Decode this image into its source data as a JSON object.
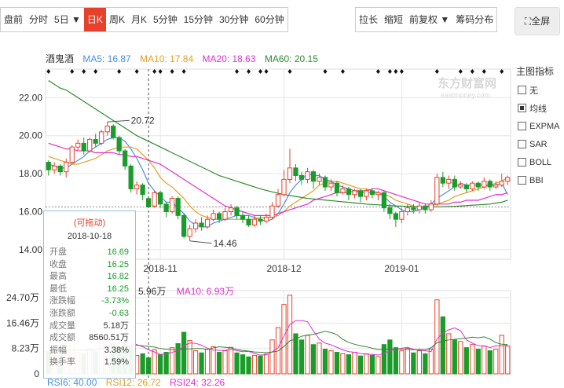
{
  "toolbar": {
    "left": [
      {
        "label": "盘前",
        "active": false
      },
      {
        "label": "分时",
        "active": false
      },
      {
        "label": "5日 ▼",
        "active": false
      },
      {
        "label": "日K",
        "active": true
      },
      {
        "label": "周K",
        "active": false
      },
      {
        "label": "月K",
        "active": false
      },
      {
        "label": "5分钟",
        "active": false
      },
      {
        "label": "15分钟",
        "active": false
      },
      {
        "label": "30分钟",
        "active": false
      },
      {
        "label": "60分钟",
        "active": false
      }
    ],
    "right": [
      {
        "label": "拉长"
      },
      {
        "label": "缩短"
      },
      {
        "label": "前复权 ▼"
      },
      {
        "label": "筹码分布"
      }
    ],
    "fullscreen": "全屏"
  },
  "legend": {
    "name": "酒鬼酒",
    "ma5": "MA5: 16.87",
    "ma10": "MA10: 17.84",
    "ma20": "MA20: 18.63",
    "ma60": "MA60: 20.15"
  },
  "colors": {
    "up": "#e8412b",
    "down": "#1a9c2a",
    "ma5": "#4a90e2",
    "ma10": "#e0a020",
    "ma20": "#e030d0",
    "ma60": "#2e8b2e",
    "grid": "#e6e6e6"
  },
  "side": {
    "title": "主图指标",
    "options": [
      {
        "label": "无",
        "checked": false
      },
      {
        "label": "均线",
        "checked": true
      },
      {
        "label": "EXPMA",
        "checked": false
      },
      {
        "label": "SAR",
        "checked": false
      },
      {
        "label": "BOLL",
        "checked": false
      },
      {
        "label": "BBI",
        "checked": false
      }
    ]
  },
  "watermark": {
    "main": "东方财富网",
    "sub": "eastmoney.com"
  },
  "tooltip": {
    "hint": "(可拖动)",
    "date": "2018-10-18",
    "rows": [
      {
        "k": "开盘",
        "v": "16.69",
        "c": "green"
      },
      {
        "k": "收盘",
        "v": "16.25",
        "c": "green"
      },
      {
        "k": "最高",
        "v": "16.82",
        "c": "green"
      },
      {
        "k": "最低",
        "v": "16.25",
        "c": "green"
      },
      {
        "k": "涨跌幅",
        "v": "-3.73%",
        "c": "green"
      },
      {
        "k": "涨跌额",
        "v": "-0.63",
        "c": "green"
      },
      {
        "k": "成交量",
        "v": "5.18万",
        "c": ""
      },
      {
        "k": "成交额",
        "v": "8560.51万",
        "c": ""
      },
      {
        "k": "振幅",
        "v": "3.38%",
        "c": ""
      },
      {
        "k": "换手率",
        "v": "1.59%",
        "c": ""
      }
    ]
  },
  "volume_legend": {
    "ma5": "5.96万",
    "ma10": "MA10: 6.93万"
  },
  "bottom_legend": {
    "rsi6": "RSI6: 40.00",
    "rsi12": "RSI12: 26.72",
    "rsi24": "RSI24: 32.26"
  },
  "chart_data": {
    "type": "candlestick",
    "price_axis": {
      "ticks": [
        "22.00",
        "20.00",
        "18.00",
        "16.00",
        "14.00"
      ],
      "values": [
        22,
        20,
        18,
        16,
        14
      ],
      "range": [
        13.5,
        23.5
      ]
    },
    "volume_axis": {
      "ticks": [
        "24.70万",
        "16.46万",
        "8.23万",
        "0"
      ],
      "values": [
        24.7,
        16.46,
        8.23,
        0
      ],
      "unit": "万",
      "range": [
        0,
        27
      ]
    },
    "x_ticks": [
      {
        "label": "2018-11",
        "index": 19
      },
      {
        "label": "2018-12",
        "index": 40
      },
      {
        "label": "2019-01",
        "index": 60
      }
    ],
    "annotations": [
      {
        "text": "20.72",
        "index": 10,
        "value": 20.72
      },
      {
        "text": "14.46",
        "index": 24,
        "value": 14.46
      }
    ],
    "reference_price": 16.25,
    "crosshair_index": 17,
    "candles": [
      [
        18.6,
        18.2,
        18.7,
        17.9
      ],
      [
        18.2,
        18.4,
        18.6,
        18.0
      ],
      [
        18.4,
        18.1,
        18.5,
        17.9
      ],
      [
        18.1,
        18.6,
        18.8,
        17.8
      ],
      [
        18.6,
        19.4,
        19.5,
        18.5
      ],
      [
        19.4,
        19.6,
        19.8,
        19.2
      ],
      [
        19.6,
        19.2,
        19.9,
        19.0
      ],
      [
        19.2,
        19.8,
        19.9,
        19.1
      ],
      [
        19.8,
        19.6,
        20.1,
        19.4
      ],
      [
        19.6,
        20.2,
        20.3,
        19.5
      ],
      [
        20.2,
        20.5,
        20.72,
        20.0
      ],
      [
        20.5,
        19.9,
        20.6,
        19.8
      ],
      [
        19.9,
        19.2,
        20.0,
        19.0
      ],
      [
        19.2,
        18.4,
        19.3,
        18.2
      ],
      [
        18.4,
        17.2,
        18.5,
        17.0
      ],
      [
        17.2,
        17.4,
        17.6,
        16.9
      ],
      [
        17.4,
        16.9,
        17.5,
        16.6
      ],
      [
        16.69,
        16.25,
        16.82,
        16.25
      ],
      [
        16.3,
        17.0,
        17.1,
        16.2
      ],
      [
        17.0,
        16.4,
        17.1,
        16.2
      ],
      [
        16.4,
        16.0,
        16.5,
        15.7
      ],
      [
        16.0,
        16.7,
        16.8,
        15.9
      ],
      [
        16.7,
        15.8,
        16.8,
        15.6
      ],
      [
        15.8,
        14.7,
        15.9,
        14.6
      ],
      [
        14.7,
        15.1,
        15.3,
        14.46
      ],
      [
        15.1,
        15.4,
        15.6,
        14.9
      ],
      [
        15.4,
        15.2,
        15.7,
        15.0
      ],
      [
        15.2,
        15.6,
        15.8,
        15.1
      ],
      [
        15.6,
        15.9,
        16.1,
        15.5
      ],
      [
        15.9,
        15.6,
        16.0,
        15.4
      ],
      [
        15.6,
        16.0,
        16.2,
        15.5
      ],
      [
        16.0,
        16.2,
        16.4,
        15.8
      ],
      [
        16.2,
        15.8,
        16.3,
        15.6
      ],
      [
        15.8,
        15.6,
        16.0,
        15.4
      ],
      [
        15.6,
        15.3,
        15.8,
        15.2
      ],
      [
        15.3,
        15.6,
        15.8,
        15.2
      ],
      [
        15.6,
        15.5,
        15.8,
        15.3
      ],
      [
        15.5,
        15.7,
        15.9,
        15.4
      ],
      [
        15.7,
        16.3,
        16.5,
        15.6
      ],
      [
        16.3,
        16.9,
        17.2,
        16.2
      ],
      [
        16.9,
        17.7,
        18.2,
        16.8
      ],
      [
        17.7,
        18.3,
        19.3,
        17.5
      ],
      [
        18.3,
        17.9,
        18.5,
        17.6
      ],
      [
        17.9,
        17.7,
        18.1,
        17.4
      ],
      [
        17.7,
        18.1,
        18.3,
        17.5
      ],
      [
        18.1,
        17.6,
        18.2,
        17.2
      ],
      [
        17.6,
        17.8,
        18.0,
        17.4
      ],
      [
        17.8,
        17.3,
        17.9,
        17.1
      ],
      [
        17.3,
        17.5,
        17.7,
        17.1
      ],
      [
        17.5,
        17.0,
        17.6,
        16.8
      ],
      [
        17.0,
        17.2,
        17.4,
        16.9
      ],
      [
        17.2,
        16.9,
        17.3,
        16.6
      ],
      [
        16.9,
        17.1,
        17.2,
        16.7
      ],
      [
        17.1,
        16.8,
        17.2,
        16.5
      ],
      [
        16.8,
        17.1,
        17.2,
        16.6
      ],
      [
        17.1,
        16.9,
        17.2,
        16.7
      ],
      [
        16.9,
        17.0,
        17.1,
        16.6
      ],
      [
        17.0,
        16.2,
        17.1,
        16.0
      ],
      [
        16.2,
        15.9,
        16.4,
        15.6
      ],
      [
        15.9,
        15.6,
        16.0,
        15.2
      ],
      [
        15.6,
        16.0,
        16.2,
        15.4
      ],
      [
        16.0,
        16.2,
        16.4,
        15.8
      ],
      [
        16.2,
        16.1,
        16.4,
        15.9
      ],
      [
        16.1,
        16.3,
        16.5,
        15.9
      ],
      [
        16.3,
        16.1,
        16.4,
        15.9
      ],
      [
        16.1,
        16.4,
        16.6,
        16.0
      ],
      [
        16.4,
        17.8,
        18.0,
        16.3
      ],
      [
        17.8,
        17.5,
        18.1,
        17.3
      ],
      [
        17.5,
        17.7,
        17.9,
        17.2
      ],
      [
        17.7,
        17.3,
        17.9,
        17.1
      ],
      [
        17.3,
        17.4,
        17.6,
        17.2
      ],
      [
        17.4,
        17.2,
        17.5,
        17.0
      ],
      [
        17.2,
        17.5,
        17.6,
        17.1
      ],
      [
        17.5,
        17.3,
        17.6,
        17.1
      ],
      [
        17.3,
        17.6,
        17.8,
        17.2
      ],
      [
        17.6,
        17.3,
        17.7,
        17.1
      ],
      [
        17.3,
        17.4,
        17.6,
        17.2
      ],
      [
        17.4,
        17.6,
        18.0,
        17.3
      ],
      [
        17.6,
        17.8,
        17.9,
        17.4
      ]
    ],
    "volumes": [
      7.2,
      5.8,
      6.1,
      9.0,
      10.5,
      7.0,
      6.5,
      8.0,
      7.2,
      11.0,
      12.5,
      9.8,
      8.5,
      10.2,
      9.0,
      6.0,
      6.5,
      5.18,
      7.8,
      6.2,
      7.0,
      8.5,
      9.8,
      13.5,
      10.8,
      7.5,
      6.8,
      8.0,
      8.8,
      7.0,
      7.5,
      8.6,
      6.8,
      6.2,
      5.5,
      6.0,
      5.8,
      6.4,
      11.0,
      15.0,
      22.5,
      25.5,
      13.0,
      11.0,
      12.5,
      9.5,
      10.0,
      8.0,
      7.5,
      7.0,
      6.5,
      6.2,
      7.0,
      5.8,
      6.5,
      6.0,
      5.6,
      9.5,
      11.0,
      8.5,
      7.5,
      8.2,
      6.8,
      7.5,
      6.5,
      8.0,
      24.0,
      18.5,
      13.0,
      11.0,
      10.5,
      8.5,
      9.5,
      8.0,
      9.0,
      7.5,
      8.0,
      12.5,
      9.0
    ],
    "series": [
      {
        "name": "MA5",
        "color_key": "ma5",
        "values": [
          18.5,
          18.4,
          18.3,
          18.3,
          18.5,
          18.7,
          18.9,
          19.2,
          19.4,
          19.6,
          19.8,
          19.9,
          19.9,
          19.7,
          19.3,
          18.8,
          18.2,
          17.5,
          17.1,
          16.8,
          16.5,
          16.5,
          16.2,
          15.9,
          15.5,
          15.3,
          15.2,
          15.2,
          15.4,
          15.5,
          15.6,
          15.7,
          15.8,
          15.8,
          15.8,
          15.7,
          15.6,
          15.5,
          15.6,
          15.9,
          16.4,
          17.0,
          17.4,
          17.7,
          18.0,
          17.9,
          17.9,
          17.7,
          17.6,
          17.4,
          17.3,
          17.2,
          17.1,
          17.0,
          17.0,
          17.0,
          17.0,
          16.8,
          16.5,
          16.3,
          16.1,
          16.0,
          16.0,
          16.1,
          16.2,
          16.4,
          16.7,
          16.9,
          17.1,
          17.3,
          17.5,
          17.4,
          17.4,
          17.4,
          17.4,
          17.4,
          17.4,
          17.5,
          16.9
        ]
      },
      {
        "name": "MA10",
        "color_key": "ma10",
        "values": [
          18.9,
          18.8,
          18.7,
          18.6,
          18.5,
          18.5,
          18.6,
          18.7,
          18.8,
          19.0,
          19.2,
          19.3,
          19.4,
          19.4,
          19.4,
          19.3,
          19.0,
          18.7,
          18.3,
          17.8,
          17.5,
          17.3,
          17.0,
          16.7,
          16.3,
          16.0,
          15.8,
          15.7,
          15.6,
          15.6,
          15.6,
          15.6,
          15.6,
          15.6,
          15.6,
          15.6,
          15.7,
          15.7,
          15.7,
          15.8,
          16.0,
          16.3,
          16.5,
          16.7,
          16.9,
          17.1,
          17.4,
          17.5,
          17.6,
          17.6,
          17.5,
          17.4,
          17.3,
          17.2,
          17.2,
          17.1,
          17.0,
          16.9,
          16.8,
          16.6,
          16.5,
          16.4,
          16.3,
          16.2,
          16.2,
          16.3,
          16.4,
          16.5,
          16.6,
          16.8,
          16.9,
          17.0,
          17.1,
          17.2,
          17.3,
          17.4,
          17.5,
          17.6,
          17.8
        ]
      },
      {
        "name": "MA20",
        "color_key": "ma20",
        "values": [
          19.6,
          19.5,
          19.4,
          19.3,
          19.3,
          19.2,
          19.2,
          19.2,
          19.1,
          19.1,
          19.1,
          19.1,
          19.0,
          19.0,
          18.9,
          18.9,
          18.8,
          18.7,
          18.6,
          18.5,
          18.3,
          18.1,
          17.9,
          17.7,
          17.5,
          17.3,
          17.1,
          16.9,
          16.7,
          16.5,
          16.3,
          16.2,
          16.1,
          16.0,
          15.9,
          15.8,
          15.8,
          15.8,
          15.8,
          15.9,
          16.0,
          16.1,
          16.2,
          16.3,
          16.4,
          16.6,
          16.7,
          16.8,
          16.9,
          17.0,
          17.0,
          17.0,
          17.1,
          17.1,
          17.1,
          17.2,
          17.2,
          17.1,
          17.0,
          16.9,
          16.8,
          16.7,
          16.6,
          16.5,
          16.4,
          16.4,
          16.4,
          16.4,
          16.4,
          16.5,
          16.5,
          16.6,
          16.6,
          16.6,
          16.7,
          16.8,
          16.9,
          16.9,
          17.0
        ]
      },
      {
        "name": "MA60",
        "color_key": "ma60",
        "values": [
          22.9,
          22.7,
          22.5,
          22.4,
          22.2,
          22.0,
          21.8,
          21.6,
          21.4,
          21.2,
          21.0,
          20.8,
          20.6,
          20.4,
          20.2,
          20.0,
          19.85,
          19.7,
          19.55,
          19.4,
          19.25,
          19.1,
          18.95,
          18.8,
          18.65,
          18.5,
          18.35,
          18.2,
          18.05,
          17.9,
          17.8,
          17.7,
          17.6,
          17.5,
          17.4,
          17.3,
          17.2,
          17.12,
          17.04,
          16.97,
          16.9,
          16.85,
          16.8,
          16.75,
          16.7,
          16.67,
          16.64,
          16.61,
          16.58,
          16.55,
          16.52,
          16.49,
          16.46,
          16.43,
          16.4,
          16.38,
          16.36,
          16.34,
          16.32,
          16.3,
          16.29,
          16.28,
          16.27,
          16.26,
          16.25,
          16.25,
          16.25,
          16.26,
          16.27,
          16.28,
          16.3,
          16.32,
          16.34,
          16.36,
          16.38,
          16.4,
          16.45,
          16.5,
          16.6
        ]
      }
    ],
    "volume_ma": [
      {
        "name": "MA5",
        "color_key": "ma20",
        "values": [
          8.0,
          7.6,
          7.3,
          7.4,
          7.7,
          7.7,
          7.8,
          8.2,
          7.7,
          8.7,
          9.4,
          9.7,
          10.0,
          10.4,
          10.0,
          9.5,
          8.8,
          7.8,
          7.1,
          6.3,
          6.5,
          7.0,
          7.5,
          9.1,
          10.0,
          9.9,
          9.3,
          8.3,
          7.7,
          7.6,
          7.6,
          8.0,
          7.5,
          7.2,
          7.3,
          6.6,
          6.1,
          6.2,
          7.1,
          8.4,
          12.3,
          16.0,
          17.3,
          17.3,
          16.9,
          13.9,
          11.3,
          10.0,
          9.4,
          8.6,
          7.8,
          7.2,
          7.0,
          6.6,
          6.4,
          6.3,
          6.1,
          6.7,
          7.5,
          7.9,
          8.3,
          8.6,
          8.0,
          7.7,
          7.5,
          7.2,
          11.3,
          13.2,
          14.3,
          14.9,
          14.0,
          11.0,
          10.0,
          9.1,
          9.1,
          8.5,
          9.1,
          9.1,
          9.2
        ]
      },
      {
        "name": "MA10",
        "color_key": "ma60",
        "values": [
          7.5,
          7.5,
          7.4,
          7.4,
          7.5,
          7.6,
          7.5,
          7.6,
          7.7,
          8.1,
          8.5,
          8.8,
          9.0,
          9.3,
          9.3,
          9.3,
          9.1,
          8.9,
          8.7,
          8.2,
          8.0,
          7.9,
          7.7,
          8.1,
          8.1,
          8.2,
          8.2,
          7.9,
          8.4,
          8.8,
          8.6,
          8.4,
          7.9,
          7.6,
          7.4,
          7.1,
          7.0,
          6.9,
          7.1,
          7.4,
          8.9,
          10.7,
          11.3,
          12.2,
          12.6,
          12.8,
          13.3,
          13.8,
          13.4,
          12.7,
          11.2,
          10.2,
          9.6,
          9.1,
          8.8,
          8.3,
          7.9,
          7.9,
          8.1,
          8.1,
          8.0,
          8.0,
          7.8,
          7.9,
          7.8,
          8.5,
          10.1,
          10.6,
          11.0,
          11.2,
          11.4,
          11.6,
          11.9,
          11.7,
          12.0,
          11.3,
          10.1,
          9.6,
          9.5
        ]
      }
    ]
  }
}
